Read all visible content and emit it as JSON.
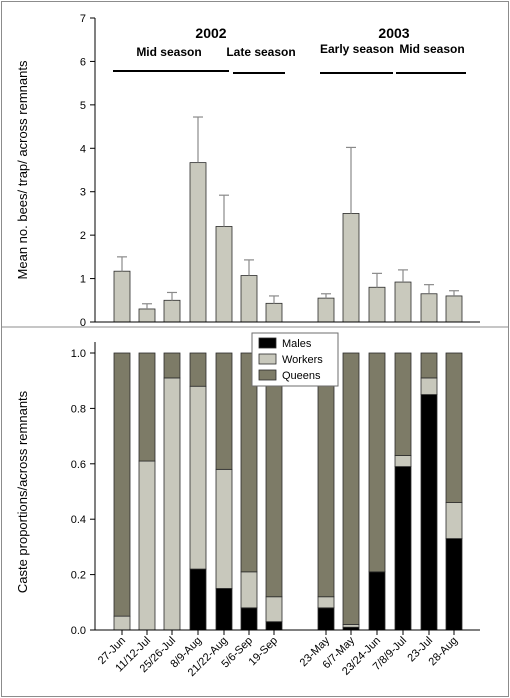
{
  "colors": {
    "mean_bar": "#c9c9bd",
    "males": "#000000",
    "workers": "#c8c8bc",
    "queens": "#7d7b67",
    "error_bar": "#8a8a8a"
  },
  "chart_data": [
    {
      "type": "bar",
      "categories": [
        "27-Jun",
        "11/12-Jul",
        "25/26-Jul",
        "8/9-Aug",
        "21/22-Aug",
        "5/6-Sep",
        "19-Sep",
        "23-May",
        "6/7-May",
        "23/24-Jun",
        "7/8/9-Jul",
        "23-Jul",
        "28-Aug"
      ],
      "series": [
        {
          "values": [
            1.17,
            0.3,
            0.5,
            3.67,
            2.2,
            1.07,
            0.43,
            0.55,
            2.5,
            0.8,
            0.92,
            0.65,
            0.6
          ]
        }
      ],
      "error_upper": [
        1.5,
        0.42,
        0.68,
        4.72,
        2.92,
        1.43,
        0.6,
        0.65,
        4.02,
        1.12,
        1.2,
        0.86,
        0.72
      ],
      "ylabel": "Mean no. bees/ trap/ across remnants",
      "ylim": [
        0,
        7
      ],
      "yticks": [
        "0",
        "1",
        "2",
        "3",
        "4",
        "5",
        "6",
        "7"
      ],
      "years": [
        "2002",
        "2003"
      ],
      "seasons": [
        "Mid season",
        "Late season",
        "Early season",
        "Mid season"
      ]
    },
    {
      "type": "bar",
      "stacked": true,
      "categories": [
        "27-Jun",
        "11/12-Jul",
        "25/26-Jul",
        "8/9-Aug",
        "21/22-Aug",
        "5/6-Sep",
        "19-Sep",
        "23-May",
        "6/7-May",
        "23/24-Jun",
        "7/8/9-Jul",
        "23-Jul",
        "28-Aug"
      ],
      "series": [
        {
          "name": "Males",
          "values": [
            0.0,
            0.0,
            0.0,
            0.22,
            0.15,
            0.08,
            0.03,
            0.08,
            0.01,
            0.21,
            0.59,
            0.85,
            0.33
          ]
        },
        {
          "name": "Workers",
          "values": [
            0.05,
            0.61,
            0.91,
            0.66,
            0.43,
            0.13,
            0.09,
            0.04,
            0.01,
            0.0,
            0.04,
            0.06,
            0.13
          ]
        },
        {
          "name": "Queens",
          "values": [
            0.95,
            0.39,
            0.09,
            0.12,
            0.42,
            0.79,
            0.88,
            0.88,
            0.98,
            0.79,
            0.37,
            0.09,
            0.54
          ]
        }
      ],
      "ylabel": "Caste proportions/across remnants",
      "ylim": [
        0,
        1
      ],
      "yticks": [
        "0.0",
        "0.2",
        "0.4",
        "0.6",
        "0.8",
        "1.0"
      ],
      "legend_position": "top-center"
    }
  ]
}
